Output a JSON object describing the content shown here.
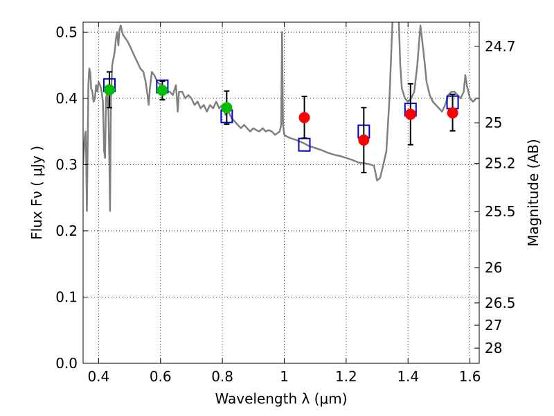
{
  "chart_data": {
    "type": "scatter",
    "xlabel": "Wavelength  λ (μm)",
    "ylabel": "Flux  Fν  ( μJy )",
    "y2label": "Magnitude (AB)",
    "xlim": [
      0.35,
      1.63
    ],
    "ylim": [
      0.0,
      0.515
    ],
    "grid": true,
    "x_ticks": [
      0.4,
      0.6,
      0.8,
      1.0,
      1.2,
      1.4,
      1.6
    ],
    "x_tick_labels": [
      "0.4",
      "0.6",
      "0.8",
      "1",
      "1.2",
      "1.4",
      "1.6"
    ],
    "y_ticks": [
      0.0,
      0.1,
      0.2,
      0.3,
      0.4,
      0.5
    ],
    "y_tick_labels": [
      "0.0",
      "0.1",
      "0.2",
      "0.3",
      "0.4",
      "0.5"
    ],
    "mag_ticks": [
      {
        "label": "24.7",
        "flux": 0.4786
      },
      {
        "label": "25",
        "flux": 0.3631
      },
      {
        "label": "25.2",
        "flux": 0.302
      },
      {
        "label": "25.5",
        "flux": 0.2291
      },
      {
        "label": "26",
        "flux": 0.1445
      },
      {
        "label": "26.5",
        "flux": 0.0912
      },
      {
        "label": "27",
        "flux": 0.0575
      },
      {
        "label": "28",
        "flux": 0.0229
      }
    ],
    "colors": {
      "spectrum": "#808080",
      "green_points": "#00c000",
      "red_points": "#ff0000",
      "model_boxes": "#0000cc",
      "errorbars": "#000000"
    },
    "series": [
      {
        "kind": "spectrum",
        "points": [
          [
            0.35,
            0.3
          ],
          [
            0.355,
            0.34
          ],
          [
            0.358,
            0.35
          ],
          [
            0.36,
            0.31
          ],
          [
            0.362,
            0.23
          ],
          [
            0.364,
            0.3
          ],
          [
            0.367,
            0.42
          ],
          [
            0.37,
            0.445
          ],
          [
            0.373,
            0.44
          ],
          [
            0.376,
            0.415
          ],
          [
            0.38,
            0.41
          ],
          [
            0.384,
            0.395
          ],
          [
            0.388,
            0.4
          ],
          [
            0.392,
            0.42
          ],
          [
            0.396,
            0.41
          ],
          [
            0.4,
            0.425
          ],
          [
            0.405,
            0.42
          ],
          [
            0.41,
            0.41
          ],
          [
            0.414,
            0.395
          ],
          [
            0.418,
            0.32
          ],
          [
            0.421,
            0.31
          ],
          [
            0.424,
            0.4
          ],
          [
            0.428,
            0.41
          ],
          [
            0.432,
            0.38
          ],
          [
            0.435,
            0.3
          ],
          [
            0.437,
            0.23
          ],
          [
            0.44,
            0.4
          ],
          [
            0.444,
            0.45
          ],
          [
            0.448,
            0.46
          ],
          [
            0.452,
            0.47
          ],
          [
            0.456,
            0.49
          ],
          [
            0.46,
            0.5
          ],
          [
            0.464,
            0.48
          ],
          [
            0.468,
            0.505
          ],
          [
            0.472,
            0.51
          ],
          [
            0.476,
            0.5
          ],
          [
            0.48,
            0.495
          ],
          [
            0.488,
            0.49
          ],
          [
            0.495,
            0.485
          ],
          [
            0.505,
            0.475
          ],
          [
            0.515,
            0.465
          ],
          [
            0.525,
            0.455
          ],
          [
            0.535,
            0.445
          ],
          [
            0.545,
            0.44
          ],
          [
            0.552,
            0.425
          ],
          [
            0.558,
            0.405
          ],
          [
            0.562,
            0.39
          ],
          [
            0.566,
            0.415
          ],
          [
            0.572,
            0.44
          ],
          [
            0.58,
            0.435
          ],
          [
            0.59,
            0.425
          ],
          [
            0.6,
            0.42
          ],
          [
            0.61,
            0.415
          ],
          [
            0.62,
            0.41
          ],
          [
            0.63,
            0.41
          ],
          [
            0.64,
            0.405
          ],
          [
            0.65,
            0.42
          ],
          [
            0.656,
            0.38
          ],
          [
            0.66,
            0.41
          ],
          [
            0.67,
            0.41
          ],
          [
            0.68,
            0.4
          ],
          [
            0.69,
            0.405
          ],
          [
            0.7,
            0.4
          ],
          [
            0.71,
            0.39
          ],
          [
            0.72,
            0.395
          ],
          [
            0.73,
            0.385
          ],
          [
            0.74,
            0.39
          ],
          [
            0.75,
            0.38
          ],
          [
            0.76,
            0.39
          ],
          [
            0.77,
            0.385
          ],
          [
            0.78,
            0.395
          ],
          [
            0.79,
            0.385
          ],
          [
            0.8,
            0.39
          ],
          [
            0.81,
            0.375
          ],
          [
            0.82,
            0.38
          ],
          [
            0.83,
            0.37
          ],
          [
            0.84,
            0.365
          ],
          [
            0.85,
            0.36
          ],
          [
            0.86,
            0.355
          ],
          [
            0.87,
            0.36
          ],
          [
            0.88,
            0.355
          ],
          [
            0.89,
            0.35
          ],
          [
            0.9,
            0.355
          ],
          [
            0.91,
            0.352
          ],
          [
            0.92,
            0.35
          ],
          [
            0.93,
            0.355
          ],
          [
            0.94,
            0.35
          ],
          [
            0.95,
            0.352
          ],
          [
            0.96,
            0.35
          ],
          [
            0.97,
            0.345
          ],
          [
            0.98,
            0.348
          ],
          [
            0.985,
            0.35
          ],
          [
            0.99,
            0.36
          ],
          [
            0.993,
            0.5
          ],
          [
            0.996,
            0.36
          ],
          [
            1.0,
            0.345
          ],
          [
            1.01,
            0.342
          ],
          [
            1.02,
            0.34
          ],
          [
            1.04,
            0.337
          ],
          [
            1.06,
            0.333
          ],
          [
            1.08,
            0.328
          ],
          [
            1.1,
            0.325
          ],
          [
            1.12,
            0.322
          ],
          [
            1.14,
            0.318
          ],
          [
            1.16,
            0.315
          ],
          [
            1.18,
            0.313
          ],
          [
            1.2,
            0.31
          ],
          [
            1.22,
            0.307
          ],
          [
            1.24,
            0.303
          ],
          [
            1.26,
            0.302
          ],
          [
            1.28,
            0.3
          ],
          [
            1.29,
            0.298
          ],
          [
            1.3,
            0.276
          ],
          [
            1.31,
            0.28
          ],
          [
            1.32,
            0.3
          ],
          [
            1.33,
            0.32
          ],
          [
            1.34,
            0.4
          ],
          [
            1.35,
            0.52
          ],
          [
            1.36,
            0.52
          ],
          [
            1.37,
            0.52
          ],
          [
            1.375,
            0.45
          ],
          [
            1.38,
            0.415
          ],
          [
            1.39,
            0.4
          ],
          [
            1.4,
            0.395
          ],
          [
            1.41,
            0.4
          ],
          [
            1.42,
            0.41
          ],
          [
            1.43,
            0.45
          ],
          [
            1.44,
            0.51
          ],
          [
            1.45,
            0.47
          ],
          [
            1.46,
            0.425
          ],
          [
            1.47,
            0.405
          ],
          [
            1.48,
            0.395
          ],
          [
            1.49,
            0.39
          ],
          [
            1.5,
            0.385
          ],
          [
            1.51,
            0.38
          ],
          [
            1.52,
            0.39
          ],
          [
            1.53,
            0.405
          ],
          [
            1.54,
            0.41
          ],
          [
            1.55,
            0.41
          ],
          [
            1.56,
            0.405
          ],
          [
            1.57,
            0.4
          ],
          [
            1.58,
            0.41
          ],
          [
            1.585,
            0.435
          ],
          [
            1.59,
            0.42
          ],
          [
            1.6,
            0.4
          ],
          [
            1.61,
            0.395
          ],
          [
            1.62,
            0.4
          ],
          [
            1.63,
            0.4
          ]
        ]
      },
      {
        "kind": "model_boxes",
        "points": [
          [
            0.435,
            0.42
          ],
          [
            0.606,
            0.418
          ],
          [
            0.814,
            0.373
          ],
          [
            1.065,
            0.33
          ],
          [
            1.257,
            0.35
          ],
          [
            1.408,
            0.383
          ],
          [
            1.544,
            0.394
          ]
        ]
      },
      {
        "kind": "observed_green",
        "points": [
          {
            "x": 0.435,
            "y": 0.413,
            "err": [
              0.386,
              0.44
            ]
          },
          {
            "x": 0.606,
            "y": 0.412,
            "err": [
              0.398,
              0.426
            ]
          },
          {
            "x": 0.814,
            "y": 0.386,
            "err": [
              0.361,
              0.411
            ]
          }
        ]
      },
      {
        "kind": "observed_red",
        "points": [
          {
            "x": 1.065,
            "y": 0.371,
            "err": [
              0.34,
              0.403
            ]
          },
          {
            "x": 1.257,
            "y": 0.337,
            "err": [
              0.288,
              0.386
            ]
          },
          {
            "x": 1.408,
            "y": 0.376,
            "err": [
              0.33,
              0.422
            ]
          },
          {
            "x": 1.544,
            "y": 0.378,
            "err": [
              0.351,
              0.406
            ]
          }
        ]
      }
    ]
  }
}
